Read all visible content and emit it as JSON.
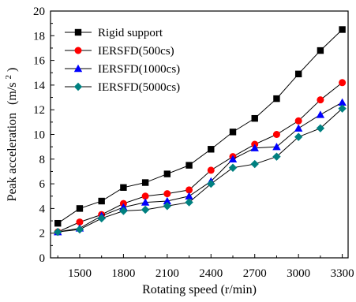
{
  "chart_data": {
    "type": "line",
    "title": "",
    "xlabel": "Rotating speed (r/min)",
    "ylabel_main": "Peak acceleration",
    "ylabel_unit": "(m/s",
    "ylabel_sup": "2",
    "ylabel_close": ")",
    "xlim": [
      1300,
      3340
    ],
    "ylim": [
      0,
      20
    ],
    "x_ticks": [
      1500,
      1800,
      2100,
      2400,
      2700,
      3000,
      3300
    ],
    "x_tick_labels": [
      "1500",
      "1800",
      "2100",
      "2400",
      "2700",
      "3000",
      "3300"
    ],
    "y_ticks": [
      0,
      2,
      4,
      6,
      8,
      10,
      12,
      14,
      16,
      18,
      20
    ],
    "y_tick_labels": [
      "0",
      "2",
      "4",
      "6",
      "8",
      "10",
      "12",
      "14",
      "16",
      "18",
      "20"
    ],
    "grid": false,
    "legend_position": "top-left",
    "x": [
      1350,
      1500,
      1650,
      1800,
      1950,
      2100,
      2250,
      2400,
      2550,
      2700,
      2850,
      3000,
      3150,
      3300
    ],
    "series": [
      {
        "name": "Rigid support",
        "color": "#000000",
        "marker": "square",
        "values": [
          2.8,
          4.0,
          4.6,
          5.7,
          6.1,
          6.8,
          7.5,
          8.8,
          10.2,
          11.3,
          12.9,
          14.9,
          16.8,
          18.5
        ]
      },
      {
        "name": "IERSFD(500cs)",
        "color": "#ff0000",
        "marker": "circle",
        "values": [
          2.1,
          2.9,
          3.5,
          4.4,
          5.0,
          5.2,
          5.5,
          7.1,
          8.2,
          9.2,
          10.0,
          11.1,
          12.8,
          14.2
        ]
      },
      {
        "name": "IERSFD(1000cs)",
        "color": "#0000ff",
        "marker": "triangle",
        "values": [
          2.1,
          2.4,
          3.4,
          4.1,
          4.5,
          4.6,
          5.0,
          6.2,
          8.0,
          8.9,
          9.0,
          10.5,
          11.6,
          12.6
        ]
      },
      {
        "name": "IERSFD(5000cs)",
        "color": "#008080",
        "marker": "diamond",
        "values": [
          2.1,
          2.3,
          3.2,
          3.8,
          3.9,
          4.2,
          4.5,
          6.0,
          7.3,
          7.6,
          8.2,
          9.8,
          10.5,
          12.1
        ]
      }
    ]
  }
}
